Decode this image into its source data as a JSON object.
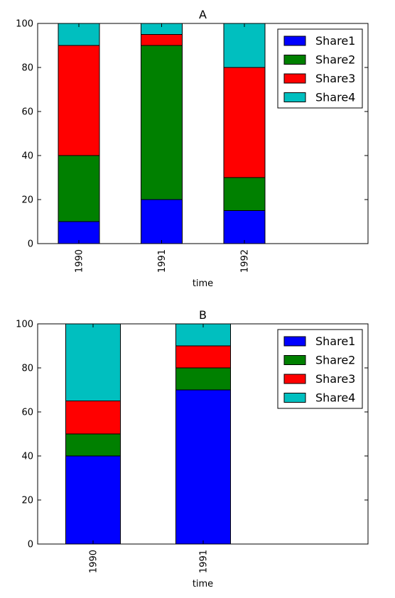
{
  "chart_data": [
    {
      "type": "bar",
      "stacked": true,
      "title": "A",
      "xlabel": "time",
      "ylabel": "",
      "ylim": [
        0,
        100
      ],
      "yticks": [
        0,
        20,
        40,
        60,
        80,
        100
      ],
      "categories": [
        "1990",
        "1991",
        "1992"
      ],
      "series": [
        {
          "name": "Share1",
          "color": "#0000ff",
          "values": [
            10,
            20,
            15
          ]
        },
        {
          "name": "Share2",
          "color": "#008000",
          "values": [
            30,
            70,
            15
          ]
        },
        {
          "name": "Share3",
          "color": "#ff0000",
          "values": [
            50,
            5,
            50
          ]
        },
        {
          "name": "Share4",
          "color": "#00bfbf",
          "values": [
            10,
            5,
            20
          ]
        }
      ],
      "legend": "top-right"
    },
    {
      "type": "bar",
      "stacked": true,
      "title": "B",
      "xlabel": "time",
      "ylabel": "",
      "ylim": [
        0,
        100
      ],
      "yticks": [
        0,
        20,
        40,
        60,
        80,
        100
      ],
      "categories": [
        "1990",
        "1991"
      ],
      "series": [
        {
          "name": "Share1",
          "color": "#0000ff",
          "values": [
            40,
            70
          ]
        },
        {
          "name": "Share2",
          "color": "#008000",
          "values": [
            10,
            10
          ]
        },
        {
          "name": "Share3",
          "color": "#ff0000",
          "values": [
            15,
            10
          ]
        },
        {
          "name": "Share4",
          "color": "#00bfbf",
          "values": [
            35,
            10
          ]
        }
      ],
      "legend": "top-right"
    }
  ]
}
